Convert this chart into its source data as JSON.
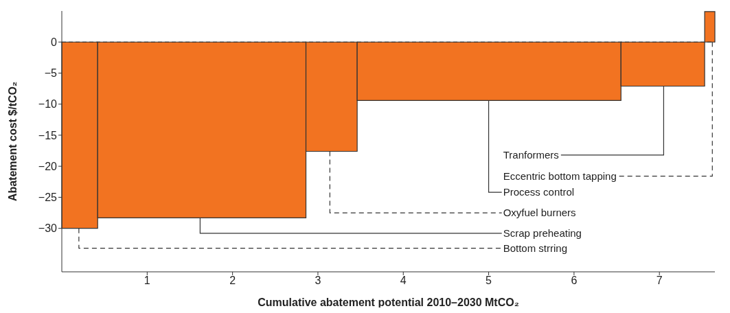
{
  "chart_data": {
    "type": "histogram",
    "xlabel": "Cumulative abatement potential 2010–2030 MtCO₂",
    "ylabel": "Abatement cost $/tCO₂",
    "bins": [
      0,
      0.42,
      2.86,
      3.46,
      6.55,
      7.53,
      7.65
    ],
    "values": [
      -30,
      -28.3,
      -17.6,
      -9.4,
      -7.1,
      4.9
    ],
    "color": "#f27321",
    "xlim": [
      0,
      7.65
    ],
    "xticks": [
      1,
      2,
      3,
      4,
      5,
      6,
      7
    ],
    "ylim": [
      -37,
      5
    ],
    "yticks": [
      0,
      -5,
      -10,
      -15,
      -20,
      -25,
      -30
    ],
    "ref_lines": [
      {
        "axis": "y",
        "value": 0,
        "line_style": "dashed",
        "color": "#333333"
      }
    ],
    "annotations": [
      {
        "text": "Bottom strring",
        "x": 0.2,
        "y": -30
      },
      {
        "text": "Scrap preheating",
        "x": 1.62,
        "y": -28.3
      },
      {
        "text": "Oxyfuel burners",
        "x": 3.14,
        "y": -17.6
      },
      {
        "text": "Process control",
        "x": 5.0,
        "y": -9.4
      },
      {
        "text": "Tranformers",
        "x": 7.05,
        "y": -7.1
      },
      {
        "text": "Eccentric bottom tapping",
        "x": 7.62,
        "y": 0
      }
    ]
  }
}
